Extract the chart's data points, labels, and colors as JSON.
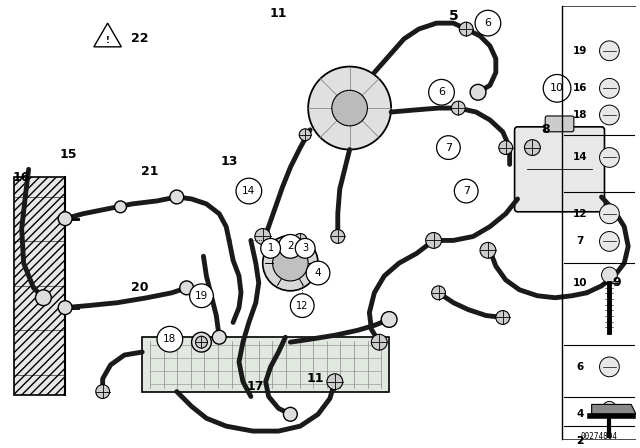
{
  "bg_color": "#f5f5f0",
  "lc": "#1a1a1a",
  "part_num_id": "00274804",
  "fig_w": 6.4,
  "fig_h": 4.48,
  "dpi": 100
}
